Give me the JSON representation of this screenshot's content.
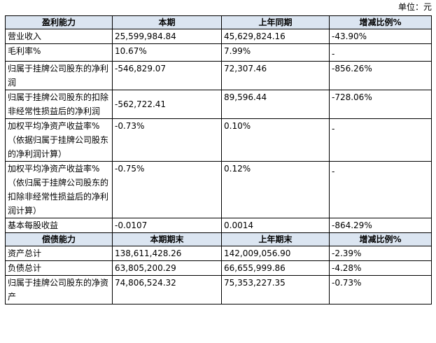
{
  "unit_label": "单位：元",
  "profit_header": [
    "盈利能力",
    "本期",
    "上年同期",
    "增减比例%"
  ],
  "profit_rows": [
    {
      "label": "营业收入",
      "current": "25,599,984.84",
      "prior": "45,629,824.16",
      "change": "-43.90%"
    },
    {
      "label": "毛利率%",
      "current": "10.67%",
      "prior": "7.99%",
      "change": "-"
    },
    {
      "label": "归属于挂牌公司股东的净利润",
      "current": "-546,829.07",
      "prior": "72,307.46",
      "change": "-856.26%"
    },
    {
      "label": "归属于挂牌公司股东的扣除非经常性损益后的净利润",
      "current": "-562,722.41",
      "prior": "89,596.44",
      "change": "-728.06%"
    },
    {
      "label": "加权平均净资产收益率%（依据归属于挂牌公司股东的净利润计算）",
      "current": "-0.73%",
      "prior": "0.10%",
      "change": "-"
    },
    {
      "label": "加权平均净资产收益率%（依归属于挂牌公司股东的扣除非经常性损益后的净利润计算）",
      "current": "-0.75%",
      "prior": "0.12%",
      "change": "-"
    },
    {
      "label": "基本每股收益",
      "current": "-0.0107",
      "prior": "0.0014",
      "change": "-864.29%"
    }
  ],
  "solvency_header": [
    "偿债能力",
    "本期期末",
    "上年期末",
    "增减比例%"
  ],
  "solvency_rows": [
    {
      "label": "资产总计",
      "current": "138,611,428.26",
      "prior": "142,009,056.90",
      "change": "-2.39%"
    },
    {
      "label": "负债总计",
      "current": "63,805,200.29",
      "prior": "66,655,999.86",
      "change": "-4.28%"
    },
    {
      "label": "归属于挂牌公司股东的净资产",
      "current": "74,806,524.32",
      "prior": "75,353,227.35",
      "change": "-0.73%"
    }
  ]
}
